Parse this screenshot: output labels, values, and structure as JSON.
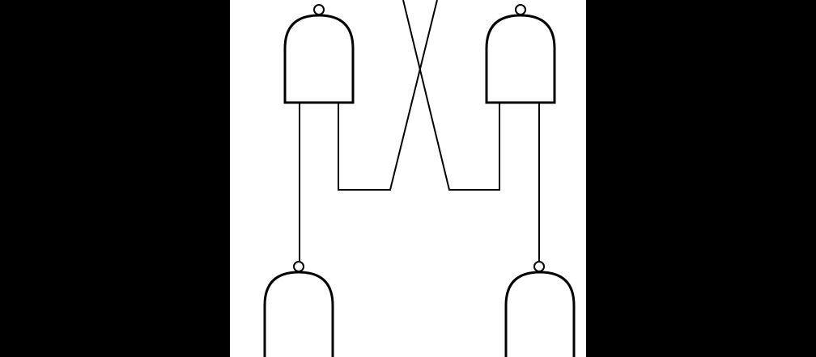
{
  "diagram": {
    "type": "logic-circuit",
    "gates": [
      {
        "id": "top-left",
        "kind": "nand"
      },
      {
        "id": "top-right",
        "kind": "nand"
      },
      {
        "id": "bottom-left",
        "kind": "nand"
      },
      {
        "id": "bottom-right",
        "kind": "nand"
      }
    ],
    "connections": [
      {
        "from": "top-left",
        "to": "bottom-left"
      },
      {
        "from": "top-right",
        "to": "bottom-right"
      },
      {
        "from": "top-left",
        "to": "cross-wire-right"
      },
      {
        "from": "top-right",
        "to": "cross-wire-left"
      }
    ]
  },
  "colors": {
    "background": "#000000",
    "panel": "#ffffff",
    "stroke": "#000000"
  }
}
